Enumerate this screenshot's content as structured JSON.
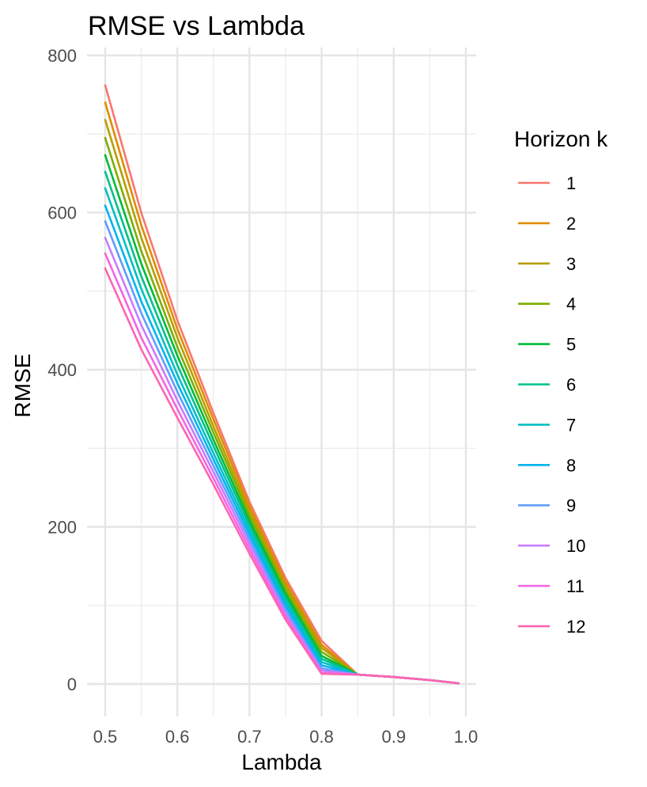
{
  "chart_data": {
    "type": "line",
    "title": "RMSE vs Lambda",
    "xlabel": "Lambda",
    "ylabel": "RMSE",
    "xlim": [
      0.5,
      1.0
    ],
    "ylim": [
      0,
      800
    ],
    "x_ticks": [
      0.5,
      0.6,
      0.7,
      0.8,
      0.9,
      1.0
    ],
    "x_tick_labels": [
      "0.5",
      "0.6",
      "0.7",
      "0.8",
      "0.9",
      "1.0"
    ],
    "y_ticks": [
      0,
      200,
      400,
      600,
      800
    ],
    "y_tick_labels": [
      "0",
      "200",
      "400",
      "600",
      "800"
    ],
    "grid": true,
    "legend": {
      "title": "Horizon k",
      "position": "right"
    },
    "x": [
      0.5,
      0.55,
      0.6,
      0.65,
      0.7,
      0.75,
      0.8,
      0.85,
      0.9,
      0.95,
      0.99
    ],
    "series": [
      {
        "name": "1",
        "color": "#F8766D",
        "values": [
          762,
          600,
          463,
          345,
          232,
          135,
          55,
          12,
          9,
          5,
          1
        ]
      },
      {
        "name": "2",
        "color": "#DE8C00",
        "values": [
          740,
          584,
          452,
          337,
          226,
          130,
          50,
          12,
          9,
          5,
          1
        ]
      },
      {
        "name": "3",
        "color": "#B79F00",
        "values": [
          718,
          568,
          441,
          328,
          220,
          125,
          46,
          12,
          9,
          5,
          1
        ]
      },
      {
        "name": "4",
        "color": "#7CAE00",
        "values": [
          695,
          551,
          429,
          320,
          214,
          120,
          41,
          12,
          9,
          5,
          1
        ]
      },
      {
        "name": "5",
        "color": "#00BA38",
        "values": [
          673,
          535,
          418,
          311,
          208,
          115,
          36,
          12,
          9,
          5,
          1
        ]
      },
      {
        "name": "6",
        "color": "#00C08B",
        "values": [
          652,
          519,
          406,
          303,
          202,
          110,
          32,
          12,
          9,
          5,
          1
        ]
      },
      {
        "name": "7",
        "color": "#00BFC4",
        "values": [
          631,
          503,
          394,
          294,
          196,
          105,
          28,
          12,
          9,
          5,
          1
        ]
      },
      {
        "name": "8",
        "color": "#00B4F0",
        "values": [
          609,
          487,
          383,
          286,
          190,
          100,
          24,
          12,
          9,
          5,
          1
        ]
      },
      {
        "name": "9",
        "color": "#619CFF",
        "values": [
          589,
          472,
          372,
          278,
          184,
          95,
          20,
          12,
          9,
          5,
          1
        ]
      },
      {
        "name": "10",
        "color": "#C77CFF",
        "values": [
          568,
          457,
          361,
          270,
          178,
          90,
          17,
          12,
          9,
          5,
          1
        ]
      },
      {
        "name": "11",
        "color": "#F564E3",
        "values": [
          548,
          441,
          350,
          262,
          172,
          86,
          14,
          12,
          9,
          5,
          1
        ]
      },
      {
        "name": "12",
        "color": "#FF64B0",
        "values": [
          529,
          426,
          339,
          254,
          166,
          82,
          13,
          12,
          9,
          5,
          1
        ]
      }
    ]
  }
}
